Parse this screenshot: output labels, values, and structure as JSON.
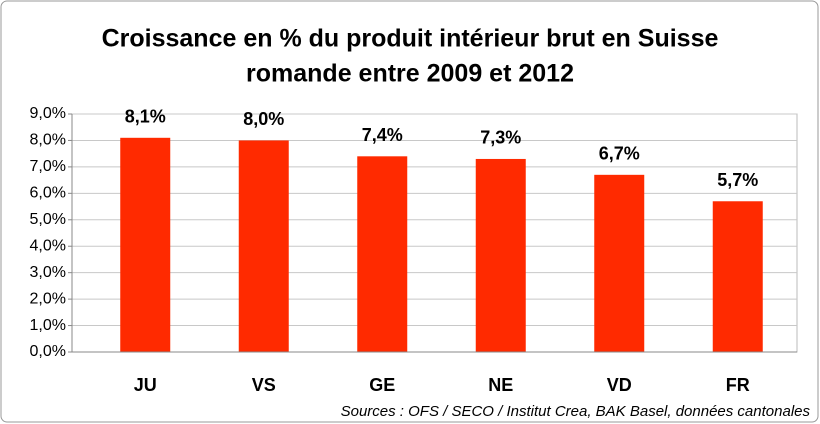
{
  "chart_data": {
    "type": "bar",
    "title": [
      "Croissance en % du produit intérieur brut en Suisse",
      "romande entre 2009 et 2012"
    ],
    "categories": [
      "JU",
      "VS",
      "GE",
      "NE",
      "VD",
      "FR"
    ],
    "values": [
      8.1,
      8.0,
      7.4,
      7.3,
      6.7,
      5.7
    ],
    "value_labels": [
      "8,1%",
      "8,0%",
      "7,4%",
      "7,3%",
      "6,7%",
      "5,7%"
    ],
    "color": "#ff2a00",
    "ylim": [
      0,
      9
    ],
    "yticks": [
      {
        "value": 0,
        "label": "0,0%"
      },
      {
        "value": 1,
        "label": "1,0%"
      },
      {
        "value": 2,
        "label": "2,0%"
      },
      {
        "value": 3,
        "label": "3,0%"
      },
      {
        "value": 4,
        "label": "4,0%"
      },
      {
        "value": 5,
        "label": "5,0%"
      },
      {
        "value": 6,
        "label": "6,0%"
      },
      {
        "value": 7,
        "label": "7,0%"
      },
      {
        "value": 8,
        "label": "8,0%"
      },
      {
        "value": 9,
        "label": "9,0%"
      }
    ],
    "grid": true,
    "source": "Sources : OFS / SECO / Institut Crea, BAK Basel, données cantonales"
  }
}
